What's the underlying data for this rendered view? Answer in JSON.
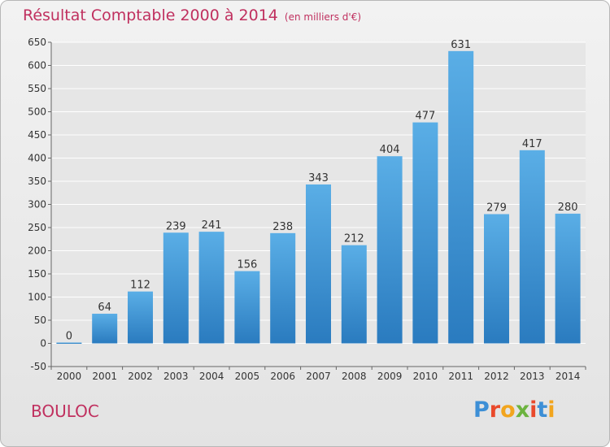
{
  "header": {
    "title": "Résultat Comptable 2000 à 2014",
    "subtitle": "(en milliers d'€)"
  },
  "footer": {
    "town": "BOULOC",
    "logo_text": "Proxiti"
  },
  "colors": {
    "title": "#c0305f",
    "bar_top": "#5aaee6",
    "bar_bottom": "#2a7bbf",
    "grid": "#ffffff"
  },
  "chart_data": {
    "type": "bar",
    "categories": [
      "2000",
      "2001",
      "2002",
      "2003",
      "2004",
      "2005",
      "2006",
      "2007",
      "2008",
      "2009",
      "2010",
      "2011",
      "2012",
      "2013",
      "2014"
    ],
    "values": [
      0,
      64,
      112,
      239,
      241,
      156,
      238,
      343,
      212,
      404,
      477,
      631,
      279,
      417,
      280
    ],
    "data_labels": [
      "0",
      "64",
      "112",
      "239",
      "241",
      "156",
      "238",
      "343",
      "212",
      "404",
      "477",
      "631",
      "279",
      "417",
      "280"
    ],
    "ylim": [
      -50,
      650
    ],
    "yticks": [
      -50,
      0,
      50,
      100,
      150,
      200,
      250,
      300,
      350,
      400,
      450,
      500,
      550,
      600,
      650
    ],
    "grid": true
  }
}
